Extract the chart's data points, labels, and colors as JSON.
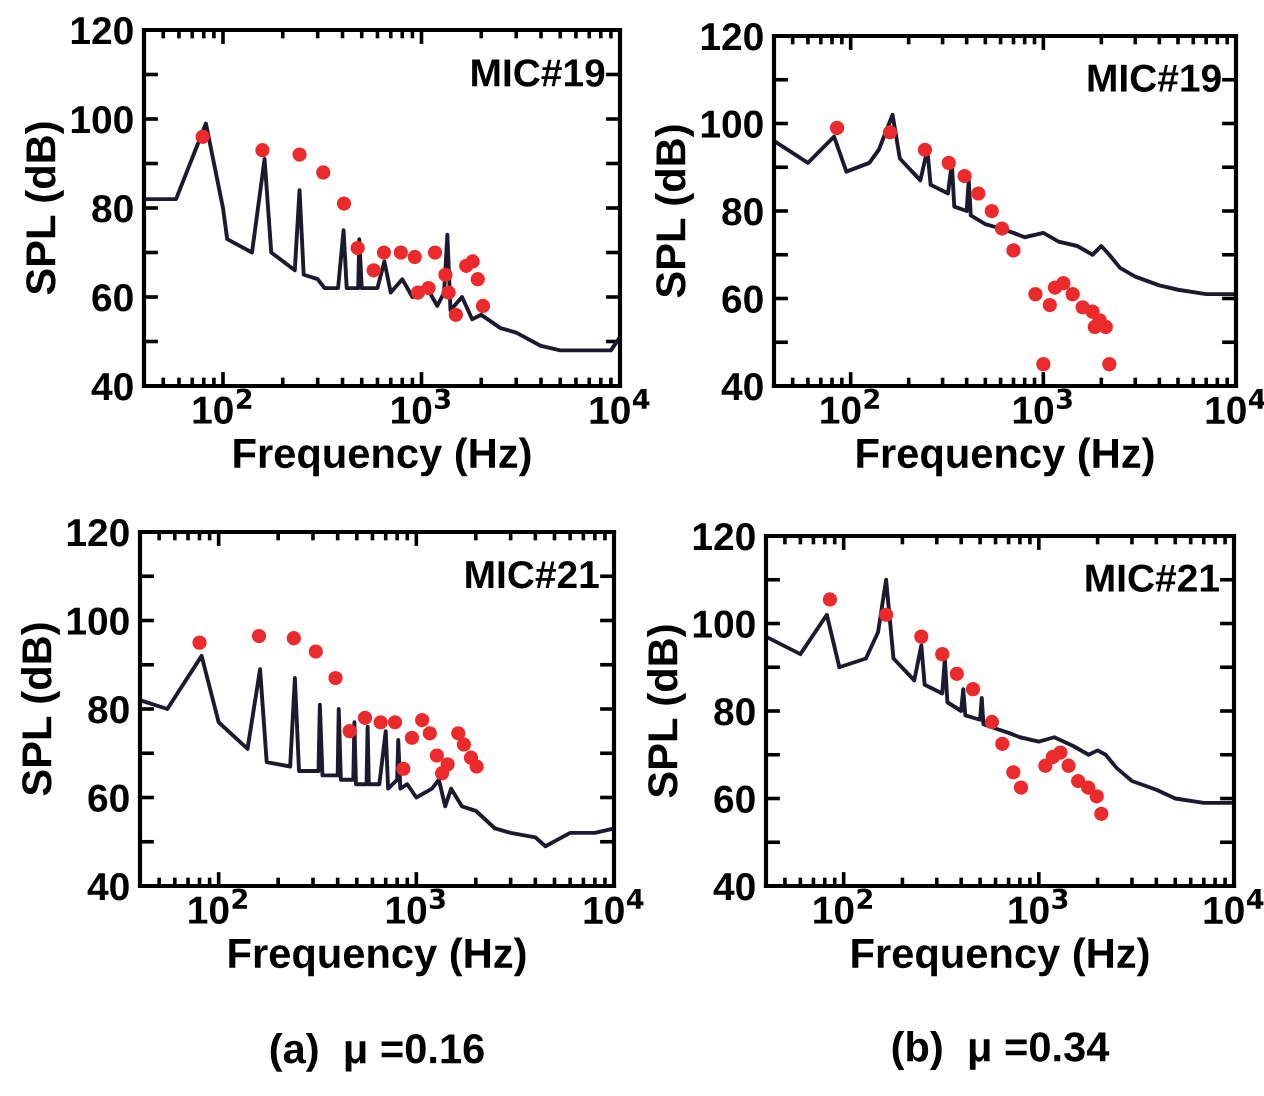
{
  "chart_data": [
    {
      "type": "line",
      "xlabel": "Frequency (Hz)",
      "ylabel": "SPL (dB)",
      "log": "x",
      "xlim": [
        40,
        10000
      ],
      "xticks": [
        {
          "value": 100,
          "label": "10$^{2}$"
        },
        {
          "value": 1000,
          "label": "10$^{3}$"
        },
        {
          "value": 10000,
          "label": "10$^{4}$"
        }
      ],
      "ylim": [
        40,
        120
      ],
      "yticks": [
        40,
        {
          "value": 50,
          "label": null
        },
        60,
        {
          "value": 70,
          "label": null
        },
        80,
        {
          "value": 90,
          "label": null
        },
        100,
        {
          "value": 110,
          "label": null
        },
        120
      ],
      "annotations": [
        "MIC#19"
      ],
      "series": [
        {
          "type": "line",
          "color": "#1c1a2e",
          "x": [
            40,
            58,
            82,
            100,
            105,
            140,
            162,
            175,
            230,
            243,
            255,
            300,
            325,
            380,
            405,
            420,
            480,
            486,
            500,
            600,
            650,
            700,
            800,
            900,
            1000,
            1100,
            1200,
            1300,
            1350,
            1400,
            1600,
            1800,
            2000,
            2500,
            3000,
            4000,
            5000,
            7000,
            9000,
            10000
          ],
          "values": [
            82,
            82,
            99,
            80,
            73,
            70,
            91,
            70,
            66,
            84,
            65,
            64,
            62,
            62,
            75,
            62,
            62,
            73,
            62,
            62,
            68,
            61,
            64,
            60,
            62,
            61,
            58,
            61,
            74,
            57,
            60,
            55,
            56,
            53,
            52,
            49,
            48,
            48,
            48,
            51
          ]
        },
        {
          "type": "scatter",
          "color": "#ec2a2c",
          "marker": "circle",
          "x": [
            79,
            158,
            243,
            320,
            407,
            477,
            574,
            647,
            787,
            925,
            960,
            1085,
            1170,
            1320,
            1370,
            1490,
            1680,
            1810,
            1920,
            2040
          ],
          "values": [
            96,
            93,
            92,
            88,
            81,
            71,
            66,
            70,
            70,
            69,
            61,
            62,
            70,
            65,
            61,
            56,
            67,
            68,
            64,
            58
          ]
        }
      ]
    },
    {
      "type": "line",
      "xlabel": "Frequency (Hz)",
      "ylabel": "SPL (dB)",
      "log": "x",
      "xlim": [
        40,
        10000
      ],
      "xticks": [
        {
          "value": 100,
          "label": "10$^{2}$"
        },
        {
          "value": 1000,
          "label": "10$^{3}$"
        },
        {
          "value": 10000,
          "label": "10$^{4}$"
        }
      ],
      "ylim": [
        40,
        120
      ],
      "yticks": [
        40,
        {
          "value": 50,
          "label": null
        },
        60,
        {
          "value": 70,
          "label": null
        },
        80,
        {
          "value": 90,
          "label": null
        },
        100,
        {
          "value": 110,
          "label": null
        },
        120
      ],
      "annotations": [
        "MIC#19"
      ],
      "series": [
        {
          "type": "line",
          "color": "#1c1a2e",
          "x": [
            40,
            60,
            82,
            95,
            125,
            140,
            165,
            180,
            230,
            250,
            260,
            320,
            335,
            345,
            400,
            410,
            420,
            500,
            600,
            700,
            800,
            1000,
            1200,
            1500,
            1800,
            2000,
            2200,
            2500,
            3000,
            4000,
            5000,
            7000,
            10000
          ],
          "values": [
            96,
            91,
            97,
            89,
            91,
            94,
            102,
            92,
            87,
            94,
            86,
            84,
            91,
            81,
            80,
            87,
            79,
            77,
            76,
            75,
            74,
            75,
            73,
            72,
            70,
            72,
            70,
            67,
            65,
            63,
            62,
            61,
            61
          ]
        },
        {
          "type": "scatter",
          "color": "#ec2a2c",
          "marker": "circle",
          "x": [
            85,
            160,
            243,
            323,
            390,
            460,
            540,
            610,
            700,
            910,
            1000,
            1080,
            1150,
            1270,
            1420,
            1600,
            1800,
            1850,
            1960,
            2110,
            2200
          ],
          "values": [
            99,
            98,
            94,
            91,
            88,
            84,
            80,
            76,
            71,
            61,
            45,
            58.5,
            62.5,
            63.5,
            61,
            58,
            57,
            53.5,
            55,
            53.5,
            45
          ]
        }
      ]
    },
    {
      "type": "line",
      "xlabel": "Frequency (Hz)",
      "ylabel": "SPL (dB)",
      "log": "x",
      "xlim": [
        40,
        10000
      ],
      "xticks": [
        {
          "value": 100,
          "label": "10$^{2}$"
        },
        {
          "value": 1000,
          "label": "10$^{3}$"
        },
        {
          "value": 10000,
          "label": "10$^{4}$"
        }
      ],
      "ylim": [
        40,
        120
      ],
      "yticks": [
        40,
        {
          "value": 50,
          "label": null
        },
        60,
        {
          "value": 70,
          "label": null
        },
        80,
        {
          "value": 90,
          "label": null
        },
        100,
        {
          "value": 110,
          "label": null
        },
        120
      ],
      "annotations": [
        "MIC#21",
        "(a)  μ =0.16"
      ],
      "series": [
        {
          "type": "line",
          "color": "#1c1a2e",
          "x": [
            40,
            55,
            82,
            100,
            140,
            162,
            175,
            230,
            243,
            255,
            320,
            325,
            335,
            400,
            405,
            415,
            480,
            486,
            495,
            560,
            567,
            575,
            650,
            700,
            720,
            800,
            810,
            830,
            900,
            1000,
            1200,
            1300,
            1400,
            1500,
            1700,
            2000,
            2500,
            3000,
            4000,
            4500,
            6000,
            8000,
            10000
          ],
          "values": [
            82,
            80,
            92,
            77,
            71,
            89,
            68,
            67,
            87,
            66,
            66,
            81,
            65,
            65,
            80,
            64,
            64,
            77,
            63,
            63,
            76,
            63,
            63,
            75,
            62,
            64,
            73,
            62,
            63,
            60,
            62,
            64,
            58,
            62,
            58,
            57,
            53,
            52,
            51,
            49,
            52,
            52,
            53
          ]
        },
        {
          "type": "scatter",
          "color": "#ec2a2c",
          "marker": "circle",
          "x": [
            80,
            160,
            240,
            310,
            390,
            460,
            550,
            660,
            780,
            860,
            950,
            1070,
            1170,
            1270,
            1350,
            1440,
            1630,
            1740,
            1890,
            2020
          ],
          "values": [
            95,
            96.5,
            96,
            93,
            87,
            75,
            78,
            77,
            77,
            66.5,
            73.5,
            77.5,
            74.5,
            69.5,
            65.5,
            67.5,
            74.5,
            72,
            69,
            67
          ]
        }
      ]
    },
    {
      "type": "line",
      "xlabel": "Frequency (Hz)",
      "ylabel": "SPL (dB)",
      "log": "x",
      "xlim": [
        40,
        10000
      ],
      "xticks": [
        {
          "value": 100,
          "label": "10$^{2}$"
        },
        {
          "value": 1000,
          "label": "10$^{3}$"
        },
        {
          "value": 10000,
          "label": "10$^{4}$"
        }
      ],
      "ylim": [
        40,
        120
      ],
      "yticks": [
        40,
        {
          "value": 50,
          "label": null
        },
        60,
        {
          "value": 70,
          "label": null
        },
        80,
        {
          "value": 90,
          "label": null
        },
        100,
        {
          "value": 110,
          "label": null
        },
        120
      ],
      "annotations": [
        "MIC#21",
        "(b)  μ =0.34"
      ],
      "series": [
        {
          "type": "line",
          "color": "#1c1a2e",
          "x": [
            40,
            60,
            82,
            95,
            130,
            150,
            165,
            180,
            230,
            250,
            260,
            320,
            330,
            340,
            400,
            410,
            420,
            500,
            510,
            520,
            600,
            700,
            800,
            1000,
            1200,
            1500,
            1800,
            2000,
            2200,
            2500,
            3000,
            4000,
            5000,
            7000,
            10000
          ],
          "values": [
            97,
            93,
            102,
            90,
            92,
            98,
            110,
            92,
            87,
            95,
            86,
            84,
            92,
            82,
            80,
            85,
            79,
            78,
            83,
            77,
            76,
            75,
            74,
            73,
            74,
            72,
            70,
            71,
            70,
            67,
            64,
            62,
            60,
            59,
            59
          ]
        },
        {
          "type": "scatter",
          "color": "#ec2a2c",
          "marker": "circle",
          "x": [
            85,
            165,
            250,
            320,
            380,
            460,
            575,
            650,
            740,
            810,
            1080,
            1180,
            1290,
            1420,
            1590,
            1790,
            1980,
            2090
          ],
          "values": [
            105.5,
            102,
            97,
            93,
            88.5,
            85,
            77.5,
            72.5,
            66,
            62.5,
            67.5,
            69.5,
            70.5,
            67.5,
            64,
            62.5,
            60.5,
            56.5
          ]
        }
      ]
    }
  ]
}
